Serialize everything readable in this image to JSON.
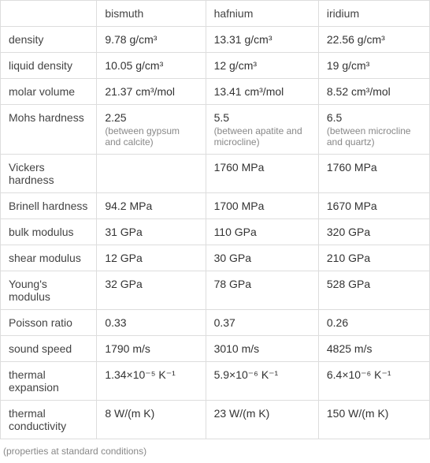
{
  "table": {
    "columns": [
      "",
      "bismuth",
      "hafnium",
      "iridium"
    ],
    "rows": [
      {
        "label": "density",
        "bismuth": "9.78 g/cm³",
        "hafnium": "13.31 g/cm³",
        "iridium": "22.56 g/cm³"
      },
      {
        "label": "liquid density",
        "bismuth": "10.05 g/cm³",
        "hafnium": "12 g/cm³",
        "iridium": "19 g/cm³"
      },
      {
        "label": "molar volume",
        "bismuth": "21.37 cm³/mol",
        "hafnium": "13.41 cm³/mol",
        "iridium": "8.52 cm³/mol"
      },
      {
        "label": "Mohs hardness",
        "bismuth": "2.25",
        "bismuth_sub": "(between gypsum and calcite)",
        "hafnium": "5.5",
        "hafnium_sub": "(between apatite and microcline)",
        "iridium": "6.5",
        "iridium_sub": "(between microcline and quartz)"
      },
      {
        "label": "Vickers hardness",
        "bismuth": "",
        "hafnium": "1760 MPa",
        "iridium": "1760 MPa"
      },
      {
        "label": "Brinell hardness",
        "bismuth": "94.2 MPa",
        "hafnium": "1700 MPa",
        "iridium": "1670 MPa"
      },
      {
        "label": "bulk modulus",
        "bismuth": "31 GPa",
        "hafnium": "110 GPa",
        "iridium": "320 GPa"
      },
      {
        "label": "shear modulus",
        "bismuth": "12 GPa",
        "hafnium": "30 GPa",
        "iridium": "210 GPa"
      },
      {
        "label": "Young's modulus",
        "bismuth": "32 GPa",
        "hafnium": "78 GPa",
        "iridium": "528 GPa"
      },
      {
        "label": "Poisson ratio",
        "bismuth": "0.33",
        "hafnium": "0.37",
        "iridium": "0.26"
      },
      {
        "label": "sound speed",
        "bismuth": "1790 m/s",
        "hafnium": "3010 m/s",
        "iridium": "4825 m/s"
      },
      {
        "label": "thermal expansion",
        "bismuth": "1.34×10⁻⁵ K⁻¹",
        "hafnium": "5.9×10⁻⁶ K⁻¹",
        "iridium": "6.4×10⁻⁶ K⁻¹"
      },
      {
        "label": "thermal conductivity",
        "bismuth": "8 W/(m K)",
        "hafnium": "23 W/(m K)",
        "iridium": "150 W/(m K)"
      }
    ],
    "footnote": "(properties at standard conditions)"
  }
}
